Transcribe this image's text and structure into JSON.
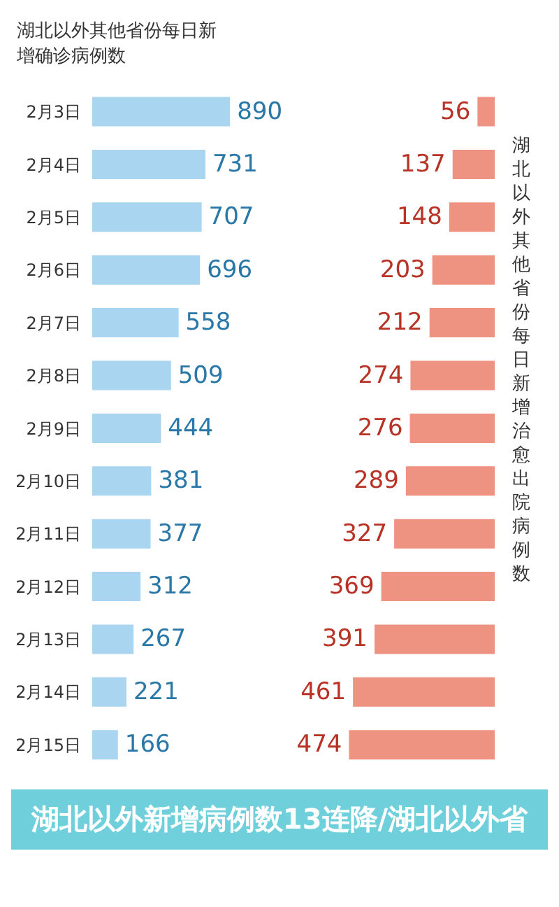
{
  "chart_data": [
    {
      "type": "bar",
      "orientation": "horizontal",
      "data_labels": true,
      "title": "湖北以外其他省份每日新增确诊病例数",
      "categories": [
        "2月3日",
        "2月4日",
        "2月5日",
        "2月6日",
        "2月7日",
        "2月8日",
        "2月9日",
        "2月10日",
        "2月11日",
        "2月12日",
        "2月13日",
        "2月14日",
        "2月15日"
      ],
      "color": "#a9d5f0",
      "values": [
        890,
        731,
        707,
        696,
        558,
        509,
        444,
        381,
        377,
        312,
        267,
        221,
        166
      ],
      "annotations": [
        "湖北以外新增病例数13连降/湖北以外省"
      ]
    },
    {
      "type": "bar",
      "orientation": "horizontal",
      "data_labels": true,
      "title": "湖北以外其他省份每日新增治愈出院病例数",
      "tick_labels": false,
      "categories": [
        null,
        null,
        null,
        null,
        null,
        null,
        null,
        null,
        null,
        null,
        null,
        null,
        null
      ],
      "color": "#ee9282",
      "values": [
        56,
        137,
        148,
        203,
        212,
        274,
        276,
        289,
        327,
        369,
        391,
        461,
        474
      ]
    }
  ]
}
